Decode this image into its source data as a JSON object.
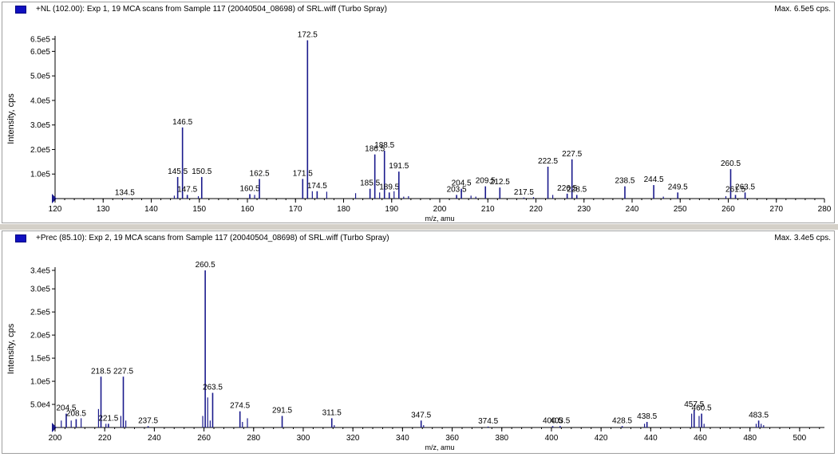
{
  "chart_data": [
    {
      "type": "bar",
      "title": "+NL (102.00): Exp 1, 19 MCA scans from Sample 117 (20040504_08698) of SRL.wiff (Turbo Spray)",
      "max_label": "Max. 6.5e5 cps.",
      "xlabel": "m/z, amu",
      "ylabel": "Intensity, cps",
      "xlim": [
        120,
        280
      ],
      "ylim": [
        0,
        650000
      ],
      "x_ticks": [
        120,
        130,
        140,
        150,
        160,
        170,
        180,
        190,
        200,
        210,
        220,
        230,
        240,
        250,
        260,
        270,
        280
      ],
      "y_ticks": [
        {
          "value": 100000,
          "label": "1.0e5"
        },
        {
          "value": 200000,
          "label": "2.0e5"
        },
        {
          "value": 300000,
          "label": "3.0e5"
        },
        {
          "value": 400000,
          "label": "4.0e5"
        },
        {
          "value": 500000,
          "label": "5.0e5"
        },
        {
          "value": 600000,
          "label": "6.0e5"
        },
        {
          "value": 650000,
          "label": "6.5e5"
        }
      ],
      "peaks": [
        {
          "mz": 134.5,
          "intensity": 2000,
          "label": "134.5"
        },
        {
          "mz": 145.5,
          "intensity": 88000,
          "label": "145.5"
        },
        {
          "mz": 146.5,
          "intensity": 290000,
          "label": "146.5"
        },
        {
          "mz": 147.5,
          "intensity": 15000,
          "label": "147.5"
        },
        {
          "mz": 150.5,
          "intensity": 88000,
          "label": "150.5"
        },
        {
          "mz": 160.5,
          "intensity": 18000,
          "label": "160.5"
        },
        {
          "mz": 162.5,
          "intensity": 80000,
          "label": "162.5"
        },
        {
          "mz": 171.5,
          "intensity": 80000,
          "label": "171.5"
        },
        {
          "mz": 172.5,
          "intensity": 645000,
          "label": "172.5"
        },
        {
          "mz": 174.5,
          "intensity": 30000,
          "label": "174.5"
        },
        {
          "mz": 185.5,
          "intensity": 40000,
          "label": "185.5"
        },
        {
          "mz": 186.5,
          "intensity": 180000,
          "label": "186.5"
        },
        {
          "mz": 188.5,
          "intensity": 195000,
          "label": "188.5"
        },
        {
          "mz": 189.5,
          "intensity": 25000,
          "label": "189.5"
        },
        {
          "mz": 191.5,
          "intensity": 110000,
          "label": "191.5"
        },
        {
          "mz": 203.5,
          "intensity": 15000,
          "label": "203.5"
        },
        {
          "mz": 204.5,
          "intensity": 40000,
          "label": "204.5"
        },
        {
          "mz": 209.5,
          "intensity": 50000,
          "label": "209.5"
        },
        {
          "mz": 212.5,
          "intensity": 45000,
          "label": "212.5"
        },
        {
          "mz": 217.5,
          "intensity": 4000,
          "label": "217.5"
        },
        {
          "mz": 222.5,
          "intensity": 130000,
          "label": "222.5"
        },
        {
          "mz": 226.5,
          "intensity": 20000,
          "label": "226.5"
        },
        {
          "mz": 227.5,
          "intensity": 160000,
          "label": "227.5"
        },
        {
          "mz": 228.5,
          "intensity": 15000,
          "label": "228.5"
        },
        {
          "mz": 238.5,
          "intensity": 50000,
          "label": "238.5"
        },
        {
          "mz": 244.5,
          "intensity": 55000,
          "label": "244.5"
        },
        {
          "mz": 249.5,
          "intensity": 25000,
          "label": "249.5"
        },
        {
          "mz": 260.5,
          "intensity": 120000,
          "label": "260.5"
        },
        {
          "mz": 261.5,
          "intensity": 15000,
          "label": "261.5"
        },
        {
          "mz": 263.5,
          "intensity": 25000,
          "label": "263.5"
        }
      ],
      "minor_peaks": [
        {
          "mz": 144.8,
          "intensity": 12000
        },
        {
          "mz": 149.8,
          "intensity": 10000
        },
        {
          "mz": 161.5,
          "intensity": 15000
        },
        {
          "mz": 173.5,
          "intensity": 30000
        },
        {
          "mz": 176.5,
          "intensity": 28000
        },
        {
          "mz": 182.5,
          "intensity": 22000
        },
        {
          "mz": 187.5,
          "intensity": 25000
        },
        {
          "mz": 190.5,
          "intensity": 30000
        },
        {
          "mz": 192.5,
          "intensity": 8000
        },
        {
          "mz": 193.5,
          "intensity": 10000
        },
        {
          "mz": 206.5,
          "intensity": 12000
        },
        {
          "mz": 207.5,
          "intensity": 8000
        },
        {
          "mz": 219.5,
          "intensity": 6000
        },
        {
          "mz": 223.5,
          "intensity": 15000
        },
        {
          "mz": 246.5,
          "intensity": 8000
        },
        {
          "mz": 259.5,
          "intensity": 10000
        }
      ]
    },
    {
      "type": "bar",
      "title": "+Prec (85.10): Exp 2, 19 MCA scans from Sample 117 (20040504_08698) of SRL.wiff (Turbo Spray)",
      "max_label": "Max. 3.4e5 cps.",
      "xlabel": "m/z, amu",
      "ylabel": "Intensity, cps",
      "xlim": [
        200,
        510
      ],
      "ylim": [
        0,
        340000
      ],
      "x_ticks": [
        200,
        220,
        240,
        260,
        280,
        300,
        320,
        340,
        360,
        380,
        400,
        420,
        440,
        460,
        480,
        500
      ],
      "y_ticks": [
        {
          "value": 50000,
          "label": "5.0e4"
        },
        {
          "value": 100000,
          "label": "1.0e5"
        },
        {
          "value": 150000,
          "label": "1.5e5"
        },
        {
          "value": 200000,
          "label": "2.0e5"
        },
        {
          "value": 250000,
          "label": "2.5e5"
        },
        {
          "value": 300000,
          "label": "3.0e5"
        },
        {
          "value": 340000,
          "label": "3.4e5"
        }
      ],
      "peaks": [
        {
          "mz": 204.5,
          "intensity": 30000,
          "label": "204.5"
        },
        {
          "mz": 208.5,
          "intensity": 18000,
          "label": "208.5"
        },
        {
          "mz": 218.5,
          "intensity": 110000,
          "label": "218.5"
        },
        {
          "mz": 221.5,
          "intensity": 8000,
          "label": "221.5"
        },
        {
          "mz": 227.5,
          "intensity": 110000,
          "label": "227.5"
        },
        {
          "mz": 237.5,
          "intensity": 3000,
          "label": "237.5"
        },
        {
          "mz": 260.5,
          "intensity": 340000,
          "label": "260.5"
        },
        {
          "mz": 263.5,
          "intensity": 75000,
          "label": "263.5"
        },
        {
          "mz": 274.5,
          "intensity": 35000,
          "label": "274.5"
        },
        {
          "mz": 291.5,
          "intensity": 25000,
          "label": "291.5"
        },
        {
          "mz": 311.5,
          "intensity": 20000,
          "label": "311.5"
        },
        {
          "mz": 347.5,
          "intensity": 15000,
          "label": "347.5"
        },
        {
          "mz": 374.5,
          "intensity": 2000,
          "label": "374.5"
        },
        {
          "mz": 400.5,
          "intensity": 3000,
          "label": "400.5"
        },
        {
          "mz": 403.5,
          "intensity": 3000,
          "label": "403.5"
        },
        {
          "mz": 428.5,
          "intensity": 3000,
          "label": "428.5"
        },
        {
          "mz": 438.5,
          "intensity": 12000,
          "label": "438.5"
        },
        {
          "mz": 457.5,
          "intensity": 38000,
          "label": "457.5"
        },
        {
          "mz": 460.5,
          "intensity": 30000,
          "label": "460.5"
        },
        {
          "mz": 483.5,
          "intensity": 15000,
          "label": "483.5"
        }
      ],
      "minor_peaks": [
        {
          "mz": 202.5,
          "intensity": 15000
        },
        {
          "mz": 206.5,
          "intensity": 15000
        },
        {
          "mz": 210.5,
          "intensity": 20000
        },
        {
          "mz": 217.5,
          "intensity": 40000
        },
        {
          "mz": 220.5,
          "intensity": 8000
        },
        {
          "mz": 226.5,
          "intensity": 25000
        },
        {
          "mz": 228.5,
          "intensity": 15000
        },
        {
          "mz": 259.5,
          "intensity": 25000
        },
        {
          "mz": 261.5,
          "intensity": 65000
        },
        {
          "mz": 262.5,
          "intensity": 15000
        },
        {
          "mz": 275.5,
          "intensity": 12000
        },
        {
          "mz": 277.5,
          "intensity": 20000
        },
        {
          "mz": 312.5,
          "intensity": 5000
        },
        {
          "mz": 348.5,
          "intensity": 5000
        },
        {
          "mz": 437.5,
          "intensity": 8000
        },
        {
          "mz": 456.5,
          "intensity": 30000
        },
        {
          "mz": 459.5,
          "intensity": 25000
        },
        {
          "mz": 461.5,
          "intensity": 8000
        },
        {
          "mz": 482.5,
          "intensity": 8000
        },
        {
          "mz": 484.5,
          "intensity": 8000
        },
        {
          "mz": 485.5,
          "intensity": 5000
        }
      ]
    }
  ],
  "colors": {
    "peak": "#1a1a8c",
    "axis": "#000000",
    "marker": "#1010c0"
  }
}
